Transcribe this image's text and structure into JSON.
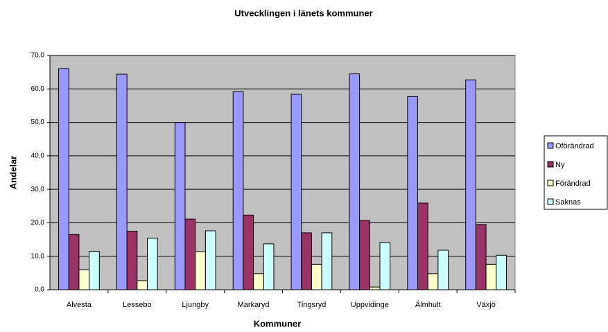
{
  "chart_data": {
    "type": "bar",
    "title": "Utvecklingen i länets kommuner",
    "x_label": "Kommuner",
    "y_label": "Andelar",
    "categories": [
      "Alvesta",
      "Lessebo",
      "Ljungby",
      "Markaryd",
      "Tingsryd",
      "Uppvidinge",
      "Älmhult",
      "Växjö"
    ],
    "series": [
      {
        "name": "Oförändrad",
        "color": "#9999ff",
        "values": [
          66.1,
          64.4,
          50.0,
          59.2,
          58.4,
          64.5,
          57.7,
          62.7
        ]
      },
      {
        "name": "Ny",
        "color": "#993366",
        "values": [
          16.5,
          17.5,
          21.1,
          22.3,
          17.0,
          20.7,
          25.9,
          19.5
        ]
      },
      {
        "name": "Förändrad",
        "color": "#ffffcc",
        "values": [
          6.0,
          2.7,
          11.4,
          4.8,
          7.6,
          0.8,
          4.8,
          7.6
        ]
      },
      {
        "name": "Saknas",
        "color": "#ccffff",
        "values": [
          11.5,
          15.4,
          17.6,
          13.7,
          17.0,
          14.1,
          11.8,
          10.3
        ]
      }
    ],
    "ylim": [
      0,
      70
    ],
    "yticks": [
      {
        "value": 0,
        "label": "0,0"
      },
      {
        "value": 10,
        "label": "10,0"
      },
      {
        "value": 20,
        "label": "20,0"
      },
      {
        "value": 30,
        "label": "30,0"
      },
      {
        "value": 40,
        "label": "40,0"
      },
      {
        "value": 50,
        "label": "50,0"
      },
      {
        "value": 60,
        "label": "60,0"
      },
      {
        "value": 70,
        "label": "70,0"
      }
    ],
    "grid": true,
    "legend": "right",
    "plot_background": "#c0c0c0"
  }
}
